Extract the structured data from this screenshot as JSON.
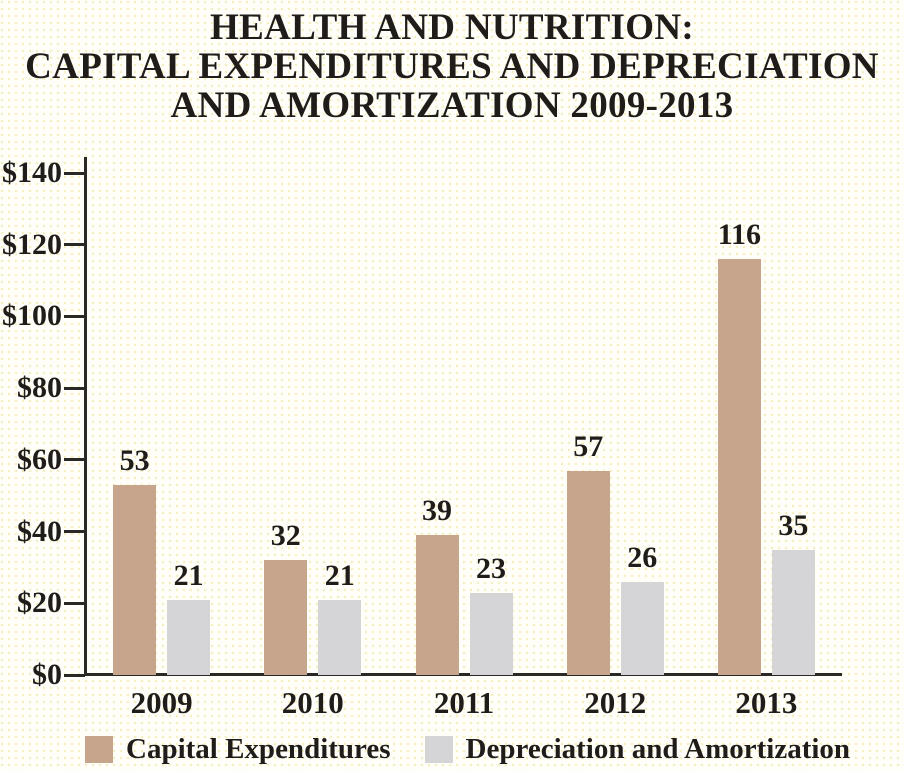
{
  "title": {
    "line1": "HEALTH AND NUTRITION:",
    "line2": "CAPITAL EXPENDITURES AND DEPRECIATION",
    "line3": "AND AMORTIZATION 2009-2013"
  },
  "chart_data": {
    "type": "bar",
    "title": "HEALTH AND NUTRITION: CAPITAL EXPENDITURES AND DEPRECIATION AND AMORTIZATION 2009-2013",
    "categories": [
      "2009",
      "2010",
      "2011",
      "2012",
      "2013"
    ],
    "series": [
      {
        "name": "Capital Expenditures",
        "color": "#c7a58c",
        "values": [
          53,
          32,
          39,
          57,
          116
        ]
      },
      {
        "name": "Depreciation and Amortization",
        "color": "#d5d5d7",
        "values": [
          21,
          21,
          23,
          26,
          35
        ]
      }
    ],
    "ylim": [
      0,
      140
    ],
    "y_tick_values": [
      0,
      20,
      40,
      60,
      80,
      100,
      120,
      140
    ],
    "y_tick_labels": [
      "$0",
      "$20",
      "$40",
      "$60",
      "$80",
      "$100",
      "$120",
      "$140"
    ],
    "xlabel": "",
    "ylabel": "",
    "grid": false,
    "legend_position": "bottom",
    "bar_value_labels_shown": true,
    "colors": {
      "ink": "#1f1c1a",
      "axis": "#2b2926",
      "background": "#fffef8"
    }
  }
}
